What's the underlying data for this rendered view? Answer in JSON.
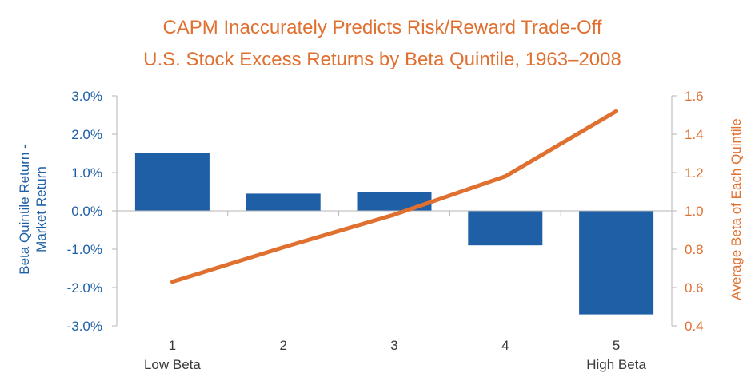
{
  "chart_data": {
    "type": "bar+line",
    "title": "CAPM Inaccurately Predicts Risk/Reward Trade-Off",
    "subtitle": "U.S. Stock Excess Returns by Beta Quintile, 1963–2008",
    "categories": [
      "1",
      "2",
      "3",
      "4",
      "5"
    ],
    "category_sublabels": [
      "Low Beta",
      "",
      "",
      "",
      "High Beta"
    ],
    "series": [
      {
        "name": "Beta Quintile Return - Market Return",
        "type": "bar",
        "axis": "left",
        "color": "#1F5FA6",
        "values": [
          1.5,
          0.45,
          0.5,
          -0.9,
          -2.7
        ]
      },
      {
        "name": "Average Beta of Each Quintile",
        "type": "line",
        "axis": "right",
        "color": "#E07030",
        "values": [
          0.63,
          0.81,
          0.98,
          1.18,
          1.52
        ]
      }
    ],
    "y_left": {
      "label_lines": [
        "Beta Quintile Return -",
        "Market Return"
      ],
      "range": [
        -3.0,
        3.0
      ],
      "ticks": [
        3.0,
        2.0,
        1.0,
        0.0,
        -1.0,
        -2.0,
        -3.0
      ],
      "tick_labels": [
        "3.0%",
        "2.0%",
        "1.0%",
        "0.0%",
        "-1.0%",
        "-2.0%",
        "-3.0%"
      ]
    },
    "y_right": {
      "label": "Average Beta of Each Quintile",
      "range": [
        0.4,
        1.6
      ],
      "ticks": [
        1.6,
        1.4,
        1.2,
        1.0,
        0.8,
        0.6,
        0.4
      ],
      "tick_labels": [
        "1.6",
        "1.4",
        "1.2",
        "1.0",
        "0.8",
        "0.6",
        "0.4"
      ]
    },
    "grid": false
  }
}
